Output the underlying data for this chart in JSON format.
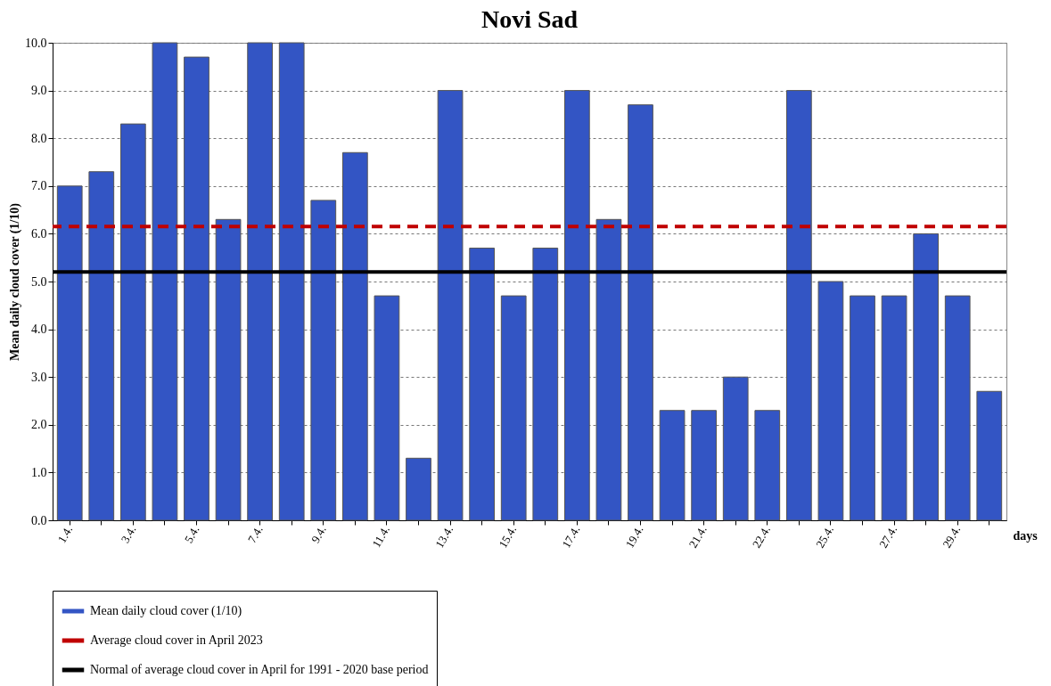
{
  "chart_data": {
    "type": "bar",
    "title": "Novi Sad",
    "categories": [
      "1.4.",
      null,
      "3.4.",
      null,
      "5.4.",
      null,
      "7.4.",
      null,
      "9.4.",
      null,
      "11.4.",
      null,
      "13.4.",
      null,
      "15.4.",
      null,
      "17.4.",
      null,
      "19.4.",
      null,
      "21.4.",
      null,
      "22.4.",
      null,
      "25.4.",
      null,
      "27.4.",
      null,
      "29.4.",
      null
    ],
    "series": [
      {
        "name": "Mean daily cloud cover (1/10)",
        "color": "#3355c4",
        "values": [
          7.0,
          7.3,
          8.3,
          10.0,
          9.7,
          6.3,
          10.0,
          10.0,
          6.7,
          7.7,
          4.7,
          1.3,
          9.0,
          5.7,
          4.7,
          5.7,
          9.0,
          6.3,
          8.7,
          2.3,
          2.3,
          3.0,
          2.3,
          9.0,
          5.0,
          4.7,
          4.7,
          6.0,
          4.7,
          2.7
        ]
      }
    ],
    "xlabel": "days",
    "ylabel": "Mean daily cloud cover (1/10)",
    "ylim": [
      0,
      10
    ],
    "yticks": [
      {
        "value": 0,
        "label": "0.0"
      },
      {
        "value": 1,
        "label": "1.0"
      },
      {
        "value": 2,
        "label": "2.0"
      },
      {
        "value": 3,
        "label": "3.0"
      },
      {
        "value": 4,
        "label": "4.0"
      },
      {
        "value": 5,
        "label": "5.0"
      },
      {
        "value": 6,
        "label": "6.0"
      },
      {
        "value": 7,
        "label": "7.0"
      },
      {
        "value": 8,
        "label": "8.0"
      },
      {
        "value": 9,
        "label": "9.0"
      },
      {
        "value": 10,
        "label": "10.0"
      }
    ],
    "ref_lines": [
      {
        "axis": "y",
        "value": 6.15,
        "label": "Average cloud cover in April 2023",
        "color": "#c00000",
        "line_style": "dashed"
      },
      {
        "axis": "y",
        "value": 5.2,
        "label": "Normal of average cloud cover in April for 1991 - 2020 base period",
        "color": "#000000",
        "line_style": "solid"
      }
    ],
    "grid": "y",
    "legend": "bottom"
  }
}
